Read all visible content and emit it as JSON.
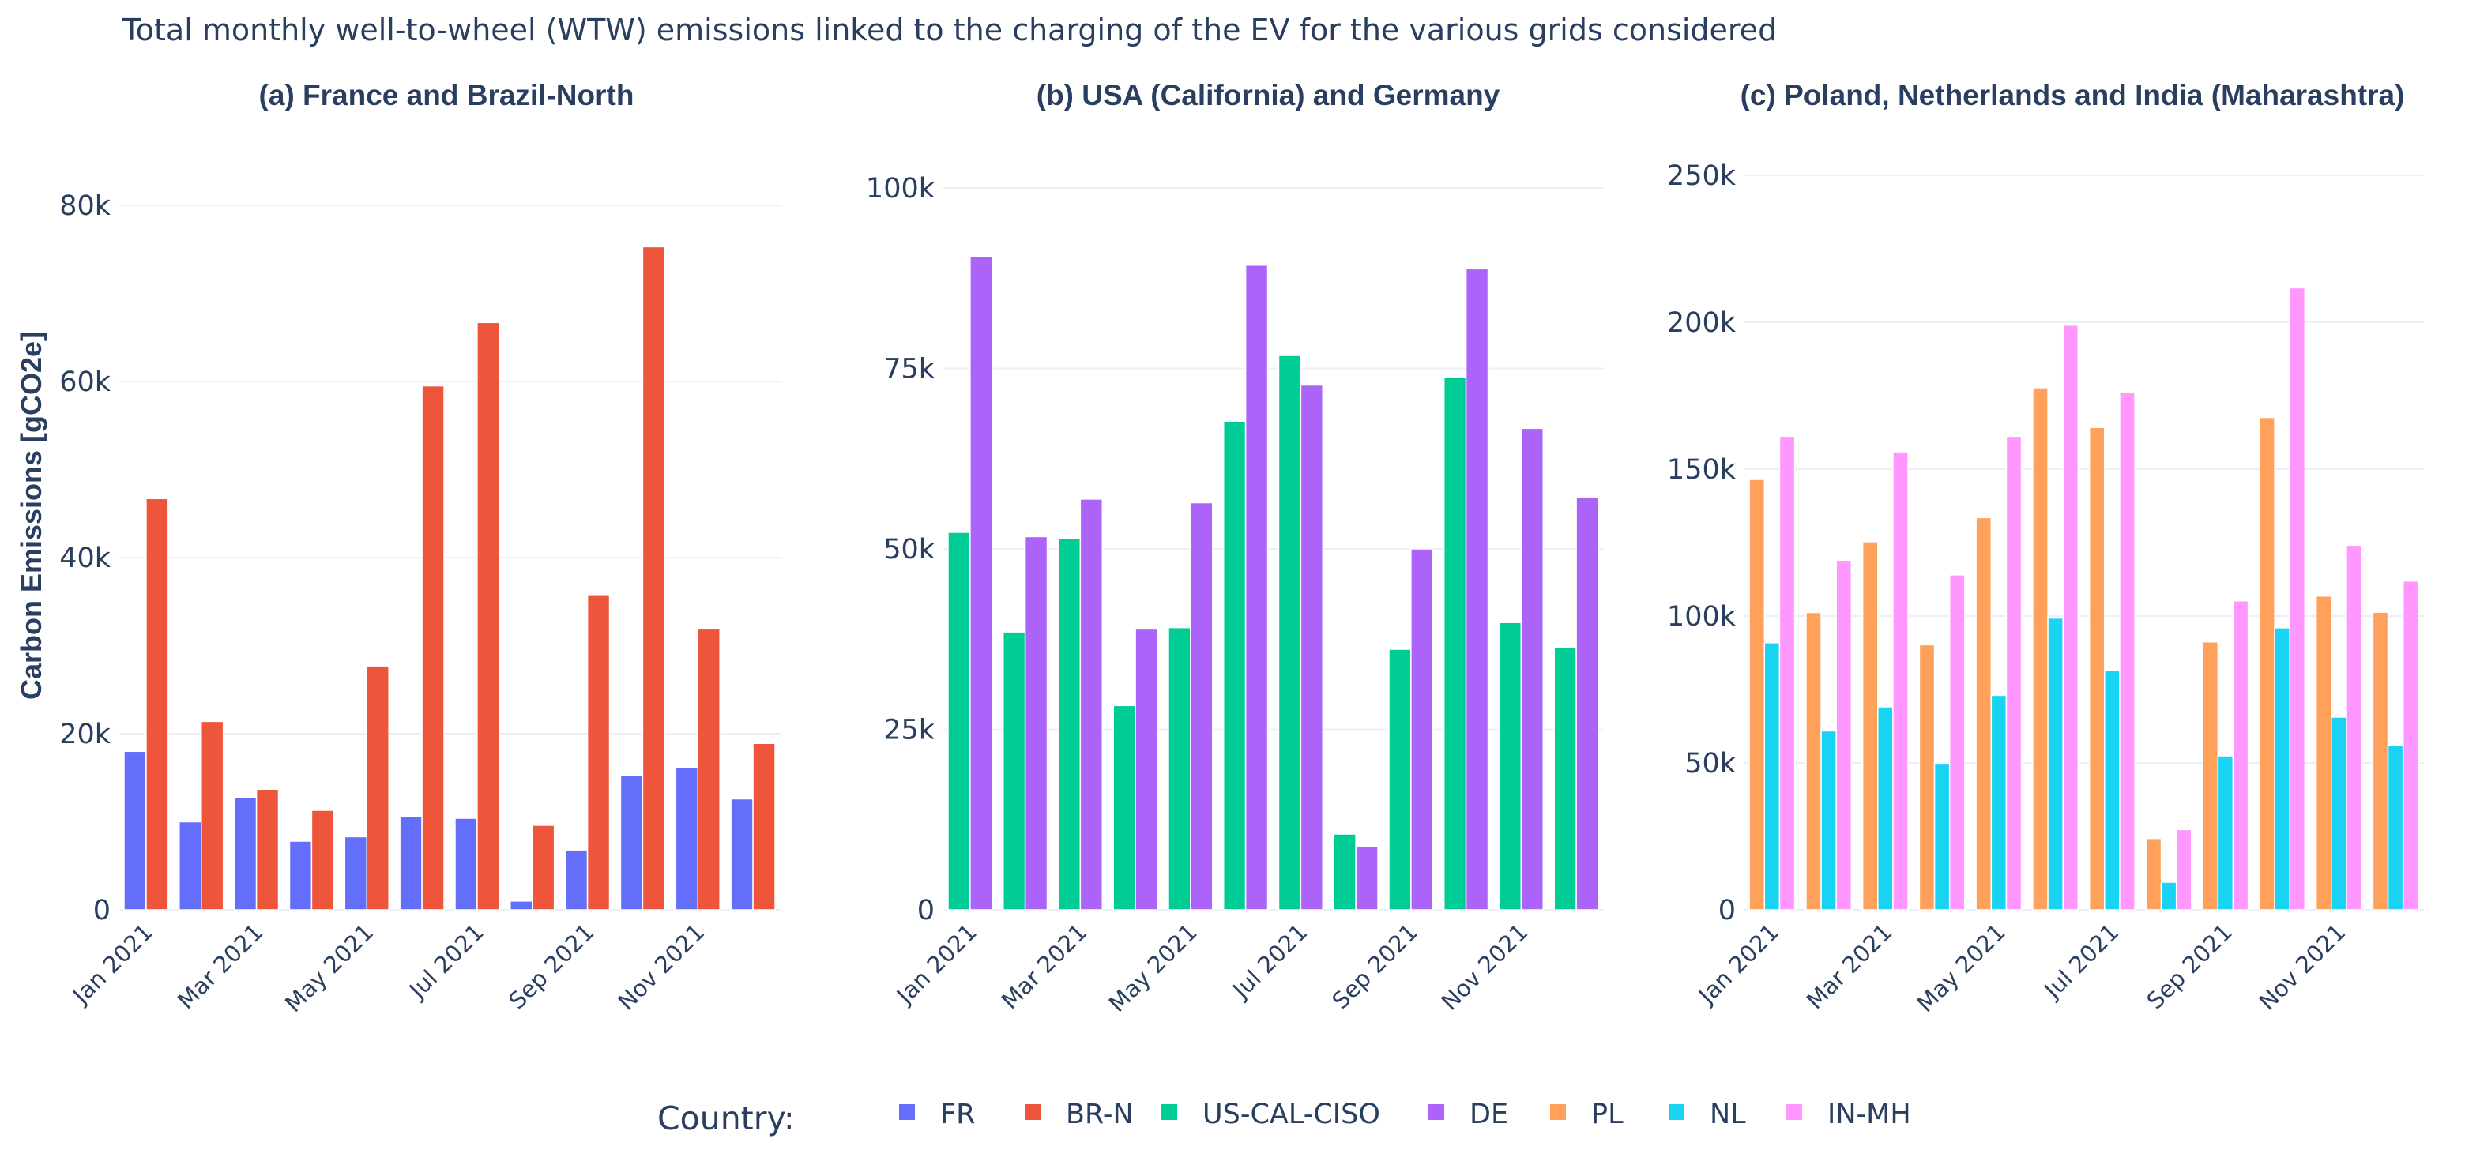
{
  "chart_data": {
    "title": "Total monthly well-to-wheel (WTW) emissions linked to the charging of the EV for the various grids considered",
    "ylabel": "Carbon Emissions [gCO2e]",
    "legend": {
      "title": "Country:",
      "position": "bottom-center",
      "items": [
        {
          "name": "FR",
          "color": "#636efa"
        },
        {
          "name": "BR-N",
          "color": "#ef553b"
        },
        {
          "name": "US-CAL-CISO",
          "color": "#00cc96"
        },
        {
          "name": "DE",
          "color": "#ab63fa"
        },
        {
          "name": "PL",
          "color": "#ffa15a"
        },
        {
          "name": "NL",
          "color": "#19d3f3"
        },
        {
          "name": "IN-MH",
          "color": "#ff97ff"
        }
      ]
    },
    "panels": [
      {
        "type": "bar",
        "title": "(a) France and Brazil-North",
        "ylim": [
          0,
          80000
        ],
        "yticks": [
          0,
          20000,
          40000,
          60000,
          80000
        ],
        "ytick_labels": [
          "0",
          "20k",
          "40k",
          "60k",
          "80k"
        ],
        "xtick_labels": [
          "Jan 2021",
          "Mar 2021",
          "May 2021",
          "Jul 2021",
          "Sep 2021",
          "Nov 2021"
        ],
        "categories": [
          "Jan 2021",
          "Feb 2021",
          "Mar 2021",
          "Apr 2021",
          "May 2021",
          "Jun 2021",
          "Jul 2021",
          "Aug 2021",
          "Sep 2021",
          "Oct 2021",
          "Nov 2021",
          "Dec 2021"
        ],
        "series": [
          {
            "name": "FR",
            "values": [
              18000,
              10000,
              12800,
              7800,
              8300,
              10600,
              10400,
              1000,
              6800,
              15300,
              16200,
              12600
            ]
          },
          {
            "name": "BR-N",
            "values": [
              46700,
              21400,
              13700,
              11300,
              27700,
              59500,
              66700,
              9600,
              35800,
              75300,
              31900,
              18900
            ]
          }
        ]
      },
      {
        "type": "bar",
        "title": "(b) USA (California) and Germany",
        "ylim": [
          0,
          100000
        ],
        "yticks": [
          0,
          25000,
          50000,
          75000,
          100000
        ],
        "ytick_labels": [
          "0",
          "25k",
          "50k",
          "75k",
          "100k"
        ],
        "xtick_labels": [
          "Jan 2021",
          "Mar 2021",
          "May 2021",
          "Jul 2021",
          "Sep 2021",
          "Nov 2021"
        ],
        "categories": [
          "Jan 2021",
          "Feb 2021",
          "Mar 2021",
          "Apr 2021",
          "May 2021",
          "Jun 2021",
          "Jul 2021",
          "Aug 2021",
          "Sep 2021",
          "Oct 2021",
          "Nov 2021",
          "Dec 2021"
        ],
        "series": [
          {
            "name": "US-CAL-CISO",
            "values": [
              52300,
              38500,
              51500,
              28300,
              39100,
              67700,
              76800,
              10500,
              36100,
              73800,
              39800,
              36300
            ]
          },
          {
            "name": "DE",
            "values": [
              90500,
              51700,
              56900,
              38900,
              56400,
              89300,
              72700,
              8800,
              50000,
              88800,
              66700,
              57200
            ]
          }
        ]
      },
      {
        "type": "bar",
        "title": "(c) Poland, Netherlands and India (Maharashtra)",
        "ylim": [
          0,
          250000
        ],
        "yticks": [
          0,
          50000,
          100000,
          150000,
          200000,
          250000
        ],
        "ytick_labels": [
          "0",
          "50k",
          "100k",
          "150k",
          "200k",
          "250k"
        ],
        "xtick_labels": [
          "Jan 2021",
          "Mar 2021",
          "May 2021",
          "Jul 2021",
          "Sep 2021",
          "Nov 2021"
        ],
        "categories": [
          "Jan 2021",
          "Feb 2021",
          "Mar 2021",
          "Apr 2021",
          "May 2021",
          "Jun 2021",
          "Jul 2021",
          "Aug 2021",
          "Sep 2021",
          "Oct 2021",
          "Nov 2021",
          "Dec 2021"
        ],
        "series": [
          {
            "name": "PL",
            "values": [
              146500,
              101200,
              125300,
              90200,
              133500,
              177700,
              164200,
              24300,
              91200,
              167600,
              106800,
              101300
            ]
          },
          {
            "name": "NL",
            "values": [
              90900,
              60900,
              69100,
              49900,
              73000,
              99300,
              81500,
              9400,
              52400,
              96000,
              65600,
              56000
            ]
          },
          {
            "name": "IN-MH",
            "values": [
              161200,
              119000,
              155900,
              114000,
              161200,
              199000,
              176300,
              27300,
              105200,
              211700,
              124100,
              111900
            ]
          }
        ]
      }
    ]
  }
}
